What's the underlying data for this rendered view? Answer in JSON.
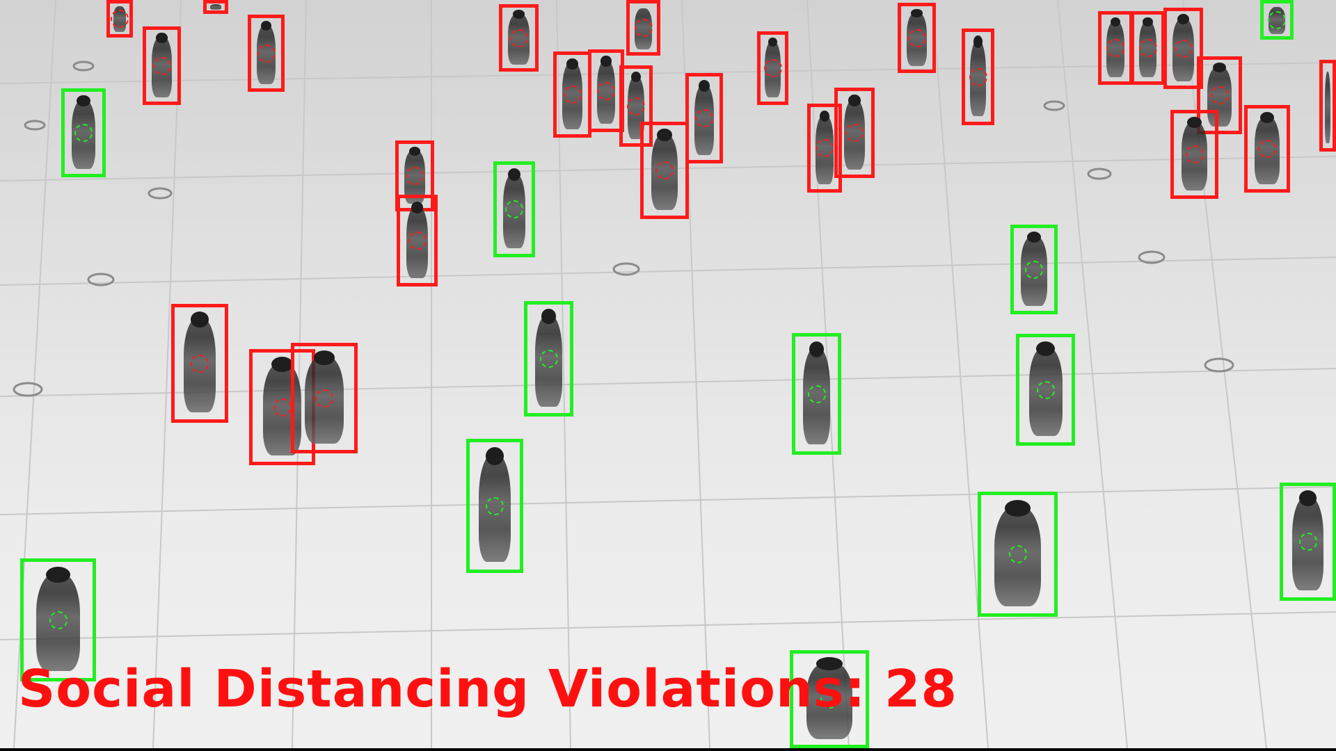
{
  "overlay": {
    "violations_label": "Social Distancing Violations: 28"
  },
  "colors": {
    "violation": "#ff1a1a",
    "safe": "#22ee22"
  },
  "detections": {
    "violation_count": 28,
    "status_legend": [
      "violation",
      "safe"
    ]
  }
}
